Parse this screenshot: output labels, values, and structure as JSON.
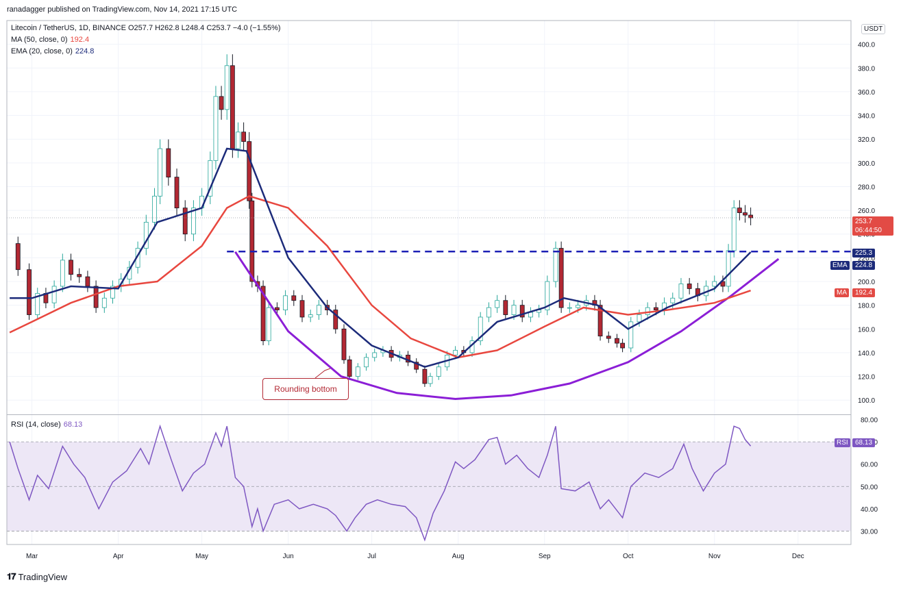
{
  "header": {
    "published": "ranadagger published on TradingView.com, Nov 14, 2021 17:15 UTC",
    "symbol_line": "Litecoin / TetherUS, 1D, BINANCE  O257.7  H262.8  L248.4  C253.7  −4.0 (−1.55%)",
    "ma_label": "MA (50, close, 0)",
    "ma_value": "192.4",
    "ema_label": "EMA (20, close, 0)",
    "ema_value": "224.8",
    "rsi_label": "RSI (14, close)",
    "rsi_value": "68.13",
    "currency": "USDT"
  },
  "brand": {
    "name": "TradingView"
  },
  "annotation": {
    "text": "Rounding bottom"
  },
  "tags": {
    "price": "253.7",
    "countdown": "06:44:50",
    "level": "225.3",
    "ema_tag": "EMA",
    "ema_val": "224.8",
    "ma_tag": "MA",
    "ma_val": "192.4",
    "rsi_tag": "RSI",
    "rsi_val": "68.13"
  },
  "colors": {
    "up": "#26a69a",
    "down": "#ef5350",
    "candle_up_body": "#ffffff",
    "candle_down_body": "#b22833",
    "ma": "#e8473f",
    "ema": "#1c2b7a",
    "rounding": "#8b1ed6",
    "level": "#1b1fb5",
    "rsi": "#7e57c2",
    "rsi_band": "#ede7f6"
  },
  "chart_data": [
    {
      "type": "candlestick",
      "title": "Litecoin / TetherUS, 1D, BINANCE",
      "y_axis_ticks": [
        100,
        120,
        140,
        160,
        180,
        200,
        220,
        240,
        260,
        280,
        300,
        320,
        340,
        360,
        380,
        400
      ],
      "ylim": [
        88,
        420
      ],
      "x_axis_ticks": [
        "Mar",
        "Apr",
        "May",
        "Jun",
        "Jul",
        "Aug",
        "Sep",
        "Oct",
        "Nov",
        "Dec"
      ],
      "horizontal_level": 225.3,
      "last_price": 253.7,
      "close_series": [
        {
          "date": "2021-02-21",
          "close": 232
        },
        {
          "date": "2021-02-24",
          "close": 210
        },
        {
          "date": "2021-02-28",
          "close": 172
        },
        {
          "date": "2021-03-03",
          "close": 190
        },
        {
          "date": "2021-03-06",
          "close": 182
        },
        {
          "date": "2021-03-09",
          "close": 196
        },
        {
          "date": "2021-03-12",
          "close": 218
        },
        {
          "date": "2021-03-15",
          "close": 206
        },
        {
          "date": "2021-03-18",
          "close": 204
        },
        {
          "date": "2021-03-21",
          "close": 196
        },
        {
          "date": "2021-03-24",
          "close": 178
        },
        {
          "date": "2021-03-27",
          "close": 186
        },
        {
          "date": "2021-03-30",
          "close": 196
        },
        {
          "date": "2021-04-02",
          "close": 202
        },
        {
          "date": "2021-04-05",
          "close": 212
        },
        {
          "date": "2021-04-08",
          "close": 228
        },
        {
          "date": "2021-04-11",
          "close": 250
        },
        {
          "date": "2021-04-14",
          "close": 272
        },
        {
          "date": "2021-04-16",
          "close": 312
        },
        {
          "date": "2021-04-19",
          "close": 288
        },
        {
          "date": "2021-04-22",
          "close": 262
        },
        {
          "date": "2021-04-25",
          "close": 240
        },
        {
          "date": "2021-04-28",
          "close": 262
        },
        {
          "date": "2021-05-01",
          "close": 272
        },
        {
          "date": "2021-05-04",
          "close": 302
        },
        {
          "date": "2021-05-06",
          "close": 356
        },
        {
          "date": "2021-05-08",
          "close": 345
        },
        {
          "date": "2021-05-10",
          "close": 382
        },
        {
          "date": "2021-05-12",
          "close": 312
        },
        {
          "date": "2021-05-14",
          "close": 326
        },
        {
          "date": "2021-05-16",
          "close": 318
        },
        {
          "date": "2021-05-18",
          "close": 268
        },
        {
          "date": "2021-05-19",
          "close": 200
        },
        {
          "date": "2021-05-21",
          "close": 196
        },
        {
          "date": "2021-05-23",
          "close": 150
        },
        {
          "date": "2021-05-25",
          "close": 178
        },
        {
          "date": "2021-05-28",
          "close": 176
        },
        {
          "date": "2021-05-31",
          "close": 188
        },
        {
          "date": "2021-06-03",
          "close": 184
        },
        {
          "date": "2021-06-06",
          "close": 170
        },
        {
          "date": "2021-06-09",
          "close": 172
        },
        {
          "date": "2021-06-12",
          "close": 180
        },
        {
          "date": "2021-06-15",
          "close": 176
        },
        {
          "date": "2021-06-18",
          "close": 160
        },
        {
          "date": "2021-06-21",
          "close": 134
        },
        {
          "date": "2021-06-23",
          "close": 120
        },
        {
          "date": "2021-06-26",
          "close": 128
        },
        {
          "date": "2021-06-29",
          "close": 136
        },
        {
          "date": "2021-07-02",
          "close": 140
        },
        {
          "date": "2021-07-05",
          "close": 142
        },
        {
          "date": "2021-07-08",
          "close": 136
        },
        {
          "date": "2021-07-11",
          "close": 138
        },
        {
          "date": "2021-07-14",
          "close": 132
        },
        {
          "date": "2021-07-17",
          "close": 126
        },
        {
          "date": "2021-07-20",
          "close": 114
        },
        {
          "date": "2021-07-22",
          "close": 120
        },
        {
          "date": "2021-07-25",
          "close": 128
        },
        {
          "date": "2021-07-28",
          "close": 138
        },
        {
          "date": "2021-07-31",
          "close": 142
        },
        {
          "date": "2021-08-03",
          "close": 140
        },
        {
          "date": "2021-08-06",
          "close": 150
        },
        {
          "date": "2021-08-09",
          "close": 170
        },
        {
          "date": "2021-08-12",
          "close": 178
        },
        {
          "date": "2021-08-15",
          "close": 184
        },
        {
          "date": "2021-08-18",
          "close": 172
        },
        {
          "date": "2021-08-21",
          "close": 180
        },
        {
          "date": "2021-08-24",
          "close": 170
        },
        {
          "date": "2021-08-27",
          "close": 174
        },
        {
          "date": "2021-08-30",
          "close": 176
        },
        {
          "date": "2021-09-02",
          "close": 200
        },
        {
          "date": "2021-09-05",
          "close": 228
        },
        {
          "date": "2021-09-07",
          "close": 178
        },
        {
          "date": "2021-09-10",
          "close": 178
        },
        {
          "date": "2021-09-13",
          "close": 180
        },
        {
          "date": "2021-09-16",
          "close": 184
        },
        {
          "date": "2021-09-19",
          "close": 180
        },
        {
          "date": "2021-09-21",
          "close": 154
        },
        {
          "date": "2021-09-24",
          "close": 152
        },
        {
          "date": "2021-09-27",
          "close": 148
        },
        {
          "date": "2021-09-29",
          "close": 144
        },
        {
          "date": "2021-10-02",
          "close": 166
        },
        {
          "date": "2021-10-05",
          "close": 172
        },
        {
          "date": "2021-10-08",
          "close": 178
        },
        {
          "date": "2021-10-11",
          "close": 176
        },
        {
          "date": "2021-10-14",
          "close": 182
        },
        {
          "date": "2021-10-17",
          "close": 186
        },
        {
          "date": "2021-10-20",
          "close": 198
        },
        {
          "date": "2021-10-23",
          "close": 194
        },
        {
          "date": "2021-10-26",
          "close": 188
        },
        {
          "date": "2021-10-29",
          "close": 196
        },
        {
          "date": "2021-11-01",
          "close": 200
        },
        {
          "date": "2021-11-04",
          "close": 196
        },
        {
          "date": "2021-11-06",
          "close": 226
        },
        {
          "date": "2021-11-08",
          "close": 262
        },
        {
          "date": "2021-11-10",
          "close": 258
        },
        {
          "date": "2021-11-12",
          "close": 256
        },
        {
          "date": "2021-11-14",
          "close": 253.7
        }
      ],
      "ma50": [
        {
          "date": "2021-02-21",
          "value": 157
        },
        {
          "date": "2021-03-01",
          "value": 166
        },
        {
          "date": "2021-03-15",
          "value": 182
        },
        {
          "date": "2021-04-01",
          "value": 196
        },
        {
          "date": "2021-04-15",
          "value": 200
        },
        {
          "date": "2021-05-01",
          "value": 230
        },
        {
          "date": "2021-05-10",
          "value": 262
        },
        {
          "date": "2021-05-18",
          "value": 272
        },
        {
          "date": "2021-06-01",
          "value": 262
        },
        {
          "date": "2021-06-15",
          "value": 230
        },
        {
          "date": "2021-07-01",
          "value": 180
        },
        {
          "date": "2021-07-15",
          "value": 152
        },
        {
          "date": "2021-08-01",
          "value": 136
        },
        {
          "date": "2021-08-15",
          "value": 142
        },
        {
          "date": "2021-09-01",
          "value": 162
        },
        {
          "date": "2021-09-15",
          "value": 178
        },
        {
          "date": "2021-10-01",
          "value": 172
        },
        {
          "date": "2021-10-15",
          "value": 176
        },
        {
          "date": "2021-11-01",
          "value": 182
        },
        {
          "date": "2021-11-14",
          "value": 192.4
        }
      ],
      "ema20": [
        {
          "date": "2021-02-21",
          "value": 186
        },
        {
          "date": "2021-03-01",
          "value": 186
        },
        {
          "date": "2021-03-15",
          "value": 196
        },
        {
          "date": "2021-04-01",
          "value": 194
        },
        {
          "date": "2021-04-15",
          "value": 250
        },
        {
          "date": "2021-05-01",
          "value": 262
        },
        {
          "date": "2021-05-10",
          "value": 312
        },
        {
          "date": "2021-05-17",
          "value": 310
        },
        {
          "date": "2021-06-01",
          "value": 220
        },
        {
          "date": "2021-06-15",
          "value": 178
        },
        {
          "date": "2021-07-01",
          "value": 146
        },
        {
          "date": "2021-07-20",
          "value": 128
        },
        {
          "date": "2021-08-01",
          "value": 136
        },
        {
          "date": "2021-08-15",
          "value": 166
        },
        {
          "date": "2021-09-01",
          "value": 178
        },
        {
          "date": "2021-09-08",
          "value": 186
        },
        {
          "date": "2021-09-20",
          "value": 180
        },
        {
          "date": "2021-10-01",
          "value": 160
        },
        {
          "date": "2021-10-15",
          "value": 178
        },
        {
          "date": "2021-11-01",
          "value": 194
        },
        {
          "date": "2021-11-14",
          "value": 224.8
        }
      ],
      "rounding_bottom_curve": [
        {
          "date": "2021-05-13",
          "value": 225
        },
        {
          "date": "2021-06-01",
          "value": 158
        },
        {
          "date": "2021-06-20",
          "value": 120
        },
        {
          "date": "2021-07-10",
          "value": 106
        },
        {
          "date": "2021-07-31",
          "value": 101
        },
        {
          "date": "2021-08-20",
          "value": 104
        },
        {
          "date": "2021-09-10",
          "value": 114
        },
        {
          "date": "2021-10-01",
          "value": 132
        },
        {
          "date": "2021-10-20",
          "value": 158
        },
        {
          "date": "2021-11-07",
          "value": 188
        },
        {
          "date": "2021-11-24",
          "value": 219
        }
      ]
    },
    {
      "type": "line",
      "title": "RSI (14, close)",
      "y_axis_ticks": [
        30,
        40,
        50,
        60,
        70,
        80
      ],
      "ylim": [
        24,
        82
      ],
      "bands": [
        30,
        50,
        70
      ],
      "values": [
        {
          "date": "2021-02-21",
          "value": 70
        },
        {
          "date": "2021-02-24",
          "value": 58
        },
        {
          "date": "2021-02-28",
          "value": 44
        },
        {
          "date": "2021-03-03",
          "value": 55
        },
        {
          "date": "2021-03-07",
          "value": 49
        },
        {
          "date": "2021-03-12",
          "value": 68
        },
        {
          "date": "2021-03-16",
          "value": 60
        },
        {
          "date": "2021-03-20",
          "value": 54
        },
        {
          "date": "2021-03-25",
          "value": 40
        },
        {
          "date": "2021-03-30",
          "value": 52
        },
        {
          "date": "2021-04-04",
          "value": 57
        },
        {
          "date": "2021-04-09",
          "value": 67
        },
        {
          "date": "2021-04-12",
          "value": 60
        },
        {
          "date": "2021-04-16",
          "value": 77
        },
        {
          "date": "2021-04-20",
          "value": 62
        },
        {
          "date": "2021-04-24",
          "value": 48
        },
        {
          "date": "2021-04-28",
          "value": 56
        },
        {
          "date": "2021-05-02",
          "value": 60
        },
        {
          "date": "2021-05-06",
          "value": 74
        },
        {
          "date": "2021-05-08",
          "value": 68
        },
        {
          "date": "2021-05-10",
          "value": 77
        },
        {
          "date": "2021-05-13",
          "value": 54
        },
        {
          "date": "2021-05-16",
          "value": 50
        },
        {
          "date": "2021-05-19",
          "value": 32
        },
        {
          "date": "2021-05-21",
          "value": 40
        },
        {
          "date": "2021-05-23",
          "value": 30
        },
        {
          "date": "2021-05-27",
          "value": 42
        },
        {
          "date": "2021-06-01",
          "value": 44
        },
        {
          "date": "2021-06-05",
          "value": 40
        },
        {
          "date": "2021-06-10",
          "value": 42
        },
        {
          "date": "2021-06-15",
          "value": 40
        },
        {
          "date": "2021-06-18",
          "value": 37
        },
        {
          "date": "2021-06-22",
          "value": 30
        },
        {
          "date": "2021-06-25",
          "value": 36
        },
        {
          "date": "2021-06-29",
          "value": 42
        },
        {
          "date": "2021-07-03",
          "value": 44
        },
        {
          "date": "2021-07-08",
          "value": 42
        },
        {
          "date": "2021-07-13",
          "value": 41
        },
        {
          "date": "2021-07-17",
          "value": 36
        },
        {
          "date": "2021-07-20",
          "value": 26
        },
        {
          "date": "2021-07-23",
          "value": 38
        },
        {
          "date": "2021-07-27",
          "value": 48
        },
        {
          "date": "2021-07-31",
          "value": 61
        },
        {
          "date": "2021-08-03",
          "value": 58
        },
        {
          "date": "2021-08-07",
          "value": 62
        },
        {
          "date": "2021-08-12",
          "value": 71
        },
        {
          "date": "2021-08-15",
          "value": 72
        },
        {
          "date": "2021-08-18",
          "value": 60
        },
        {
          "date": "2021-08-22",
          "value": 64
        },
        {
          "date": "2021-08-26",
          "value": 58
        },
        {
          "date": "2021-08-30",
          "value": 54
        },
        {
          "date": "2021-09-02",
          "value": 64
        },
        {
          "date": "2021-09-05",
          "value": 77
        },
        {
          "date": "2021-09-07",
          "value": 49
        },
        {
          "date": "2021-09-12",
          "value": 48
        },
        {
          "date": "2021-09-17",
          "value": 52
        },
        {
          "date": "2021-09-21",
          "value": 40
        },
        {
          "date": "2021-09-24",
          "value": 44
        },
        {
          "date": "2021-09-29",
          "value": 36
        },
        {
          "date": "2021-10-02",
          "value": 50
        },
        {
          "date": "2021-10-07",
          "value": 56
        },
        {
          "date": "2021-10-12",
          "value": 54
        },
        {
          "date": "2021-10-17",
          "value": 58
        },
        {
          "date": "2021-10-21",
          "value": 69
        },
        {
          "date": "2021-10-24",
          "value": 58
        },
        {
          "date": "2021-10-28",
          "value": 48
        },
        {
          "date": "2021-11-01",
          "value": 56
        },
        {
          "date": "2021-11-05",
          "value": 60
        },
        {
          "date": "2021-11-08",
          "value": 77
        },
        {
          "date": "2021-11-10",
          "value": 76
        },
        {
          "date": "2021-11-12",
          "value": 71
        },
        {
          "date": "2021-11-14",
          "value": 68.13
        }
      ]
    }
  ]
}
